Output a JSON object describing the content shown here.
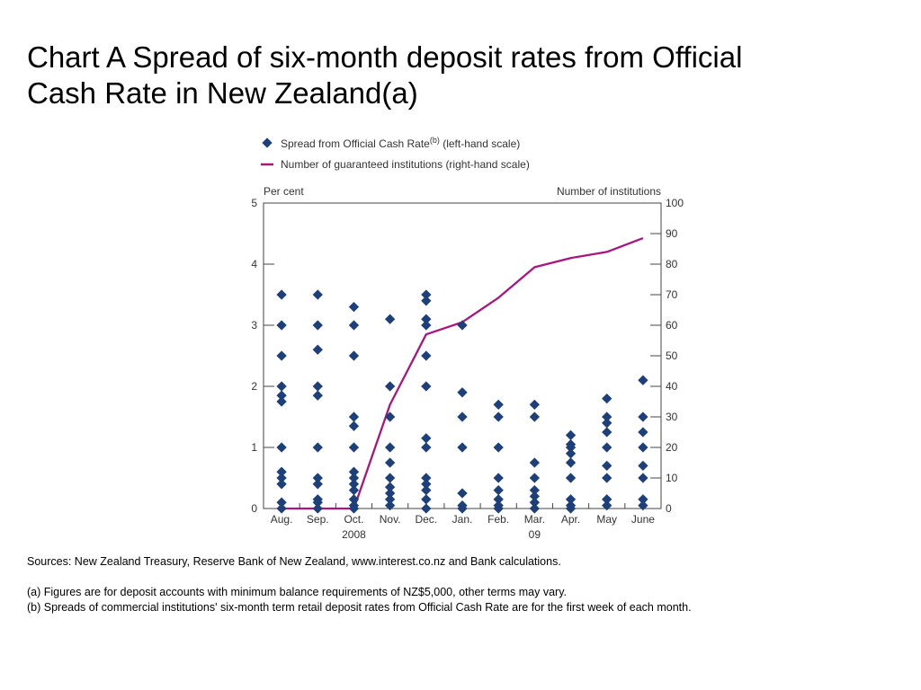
{
  "title_line1": "Chart A  Spread of six-month deposit rates from Official",
  "title_line2": "Cash Rate in New Zealand(a)",
  "footnotes": {
    "sources": "Sources:  New Zealand Treasury, Reserve Bank of New Zealand, www.interest.co.nz and Bank calculations.",
    "note_a": "(a) Figures are for deposit accounts with minimum balance requirements of NZ$5,000, other terms may vary.",
    "note_b": "(b) Spreads of commercial institutions' six-month term retail deposit rates from Official Cash Rate are for the first week of each month."
  },
  "chart_data": {
    "type": "scatter",
    "legend": {
      "placement": "top",
      "items": [
        {
          "marker": "diamond",
          "text": "Spread from Official Cash Rate",
          "superscript": "(b)",
          "suffix": " (left-hand scale)"
        },
        {
          "marker": "line",
          "text": "Number of guaranteed institutions (right-hand scale)"
        }
      ]
    },
    "left_axis_label": "Per cent",
    "right_axis_label": "Number of institutions",
    "ylim_left": [
      0,
      5
    ],
    "ylim_right": [
      0,
      100
    ],
    "left_ticks": [
      "0",
      "1",
      "2",
      "3",
      "4",
      "5"
    ],
    "right_ticks": [
      "0",
      "10",
      "20",
      "30",
      "40",
      "50",
      "60",
      "70",
      "80",
      "90",
      "100"
    ],
    "categories": [
      "Aug.",
      "Sep.",
      "Oct.",
      "Nov.",
      "Dec.",
      "Jan.",
      "Feb.",
      "Mar.",
      "Apr.",
      "May",
      "June"
    ],
    "year_labels": [
      {
        "label": "2008",
        "category_index": 2
      },
      {
        "label": "09",
        "category_index": 7
      }
    ],
    "colors": {
      "diamond": "#1d3f7a",
      "line": "#a8157f",
      "axis": "#444444",
      "text": "#333333"
    },
    "series": [
      {
        "name": "Spread from Official Cash Rate",
        "kind": "scatter",
        "points": [
          [
            0,
            3.5
          ],
          [
            0,
            3.0
          ],
          [
            0,
            2.5
          ],
          [
            0,
            2.0
          ],
          [
            0,
            1.85
          ],
          [
            0,
            1.75
          ],
          [
            0,
            1.0
          ],
          [
            0,
            0.6
          ],
          [
            0,
            0.5
          ],
          [
            0,
            0.4
          ],
          [
            0,
            0.1
          ],
          [
            0,
            0.0
          ],
          [
            1,
            3.5
          ],
          [
            1,
            3.0
          ],
          [
            1,
            2.6
          ],
          [
            1,
            2.0
          ],
          [
            1,
            1.85
          ],
          [
            1,
            1.0
          ],
          [
            1,
            0.5
          ],
          [
            1,
            0.4
          ],
          [
            1,
            0.15
          ],
          [
            1,
            0.1
          ],
          [
            1,
            0.0
          ],
          [
            2,
            3.3
          ],
          [
            2,
            3.0
          ],
          [
            2,
            2.5
          ],
          [
            2,
            1.5
          ],
          [
            2,
            1.35
          ],
          [
            2,
            1.0
          ],
          [
            2,
            0.6
          ],
          [
            2,
            0.5
          ],
          [
            2,
            0.4
          ],
          [
            2,
            0.3
          ],
          [
            2,
            0.15
          ],
          [
            2,
            0.05
          ],
          [
            2,
            0.0
          ],
          [
            3,
            3.1
          ],
          [
            3,
            2.0
          ],
          [
            3,
            1.5
          ],
          [
            3,
            1.0
          ],
          [
            3,
            0.75
          ],
          [
            3,
            0.5
          ],
          [
            3,
            0.35
          ],
          [
            3,
            0.25
          ],
          [
            3,
            0.15
          ],
          [
            3,
            0.05
          ],
          [
            4,
            3.5
          ],
          [
            4,
            3.4
          ],
          [
            4,
            3.1
          ],
          [
            4,
            3.0
          ],
          [
            4,
            2.5
          ],
          [
            4,
            2.0
          ],
          [
            4,
            1.15
          ],
          [
            4,
            1.0
          ],
          [
            4,
            0.5
          ],
          [
            4,
            0.4
          ],
          [
            4,
            0.3
          ],
          [
            4,
            0.15
          ],
          [
            4,
            0.0
          ],
          [
            5,
            3.0
          ],
          [
            5,
            1.9
          ],
          [
            5,
            1.5
          ],
          [
            5,
            1.0
          ],
          [
            5,
            0.25
          ],
          [
            5,
            0.05
          ],
          [
            5,
            0.0
          ],
          [
            6,
            1.7
          ],
          [
            6,
            1.5
          ],
          [
            6,
            1.0
          ],
          [
            6,
            0.5
          ],
          [
            6,
            0.3
          ],
          [
            6,
            0.15
          ],
          [
            6,
            0.05
          ],
          [
            6,
            0.0
          ],
          [
            7,
            1.7
          ],
          [
            7,
            1.5
          ],
          [
            7,
            0.75
          ],
          [
            7,
            0.5
          ],
          [
            7,
            0.3
          ],
          [
            7,
            0.2
          ],
          [
            7,
            0.1
          ],
          [
            7,
            0.0
          ],
          [
            8,
            1.2
          ],
          [
            8,
            1.05
          ],
          [
            8,
            1.0
          ],
          [
            8,
            0.9
          ],
          [
            8,
            0.75
          ],
          [
            8,
            0.5
          ],
          [
            8,
            0.15
          ],
          [
            8,
            0.05
          ],
          [
            8,
            0.0
          ],
          [
            9,
            1.8
          ],
          [
            9,
            1.5
          ],
          [
            9,
            1.4
          ],
          [
            9,
            1.25
          ],
          [
            9,
            1.0
          ],
          [
            9,
            0.7
          ],
          [
            9,
            0.5
          ],
          [
            9,
            0.15
          ],
          [
            9,
            0.05
          ],
          [
            10,
            2.1
          ],
          [
            10,
            1.5
          ],
          [
            10,
            1.25
          ],
          [
            10,
            1.0
          ],
          [
            10,
            0.7
          ],
          [
            10,
            0.5
          ],
          [
            10,
            0.15
          ],
          [
            10,
            0.05
          ]
        ]
      },
      {
        "name": "Number of guaranteed institutions",
        "kind": "line",
        "points": [
          [
            0,
            0
          ],
          [
            1,
            0
          ],
          [
            2,
            0
          ],
          [
            3,
            34
          ],
          [
            4,
            57
          ],
          [
            5,
            61
          ],
          [
            6,
            69
          ],
          [
            7,
            79
          ],
          [
            8,
            82
          ],
          [
            9,
            84
          ],
          [
            10,
            88.5
          ]
        ]
      }
    ]
  }
}
